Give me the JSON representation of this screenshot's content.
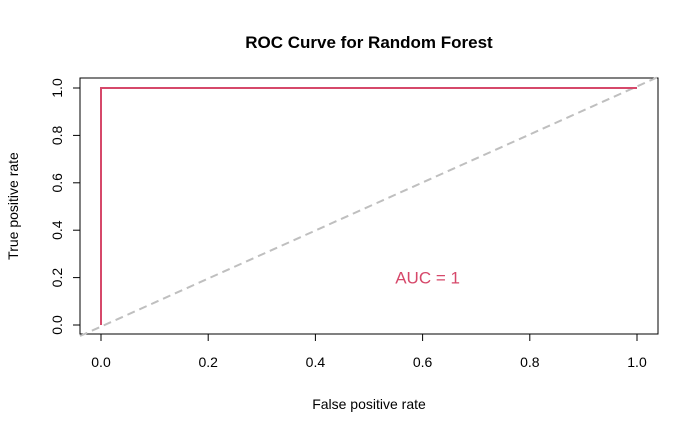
{
  "chart_data": {
    "type": "line",
    "title": "ROC Curve for Random Forest",
    "xlabel": "False positive rate",
    "ylabel": "True positive rate",
    "xlim": [
      0,
      1
    ],
    "ylim": [
      0,
      1
    ],
    "xticks": [
      "0.0",
      "0.2",
      "0.4",
      "0.6",
      "0.8",
      "1.0"
    ],
    "yticks": [
      "0.0",
      "0.2",
      "0.4",
      "0.6",
      "0.8",
      "1.0"
    ],
    "grid": false,
    "legend": "none",
    "series": [
      {
        "color": "#d6486a",
        "style": "solid",
        "x": [
          0,
          0,
          1
        ],
        "y": [
          0,
          1,
          1
        ]
      },
      {
        "color": "#bfbfbf",
        "style": "dashed",
        "x": [
          0,
          1
        ],
        "y": [
          0,
          1
        ]
      }
    ],
    "annotations": [
      {
        "text": "AUC = 1",
        "x": 0.6,
        "y": 0.2,
        "color": "#d6486a"
      }
    ]
  }
}
